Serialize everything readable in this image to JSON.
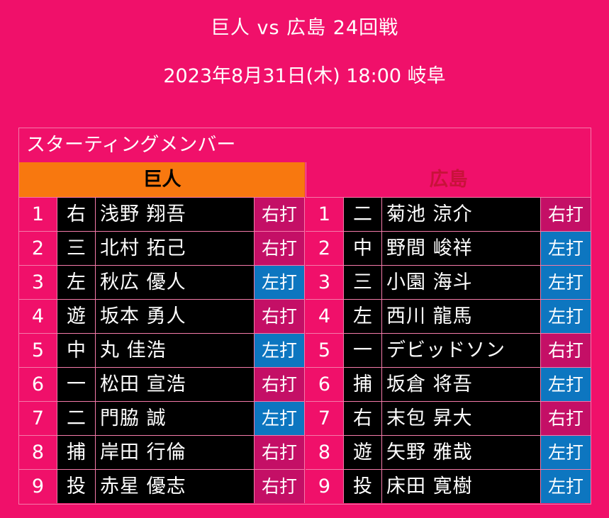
{
  "header": {
    "title": "巨人 vs 広島 24回戦",
    "subtitle": "2023年8月31日(木) 18:00 岐阜"
  },
  "section_title": "スターティングメンバー",
  "teams": [
    {
      "name": "巨人",
      "players": [
        {
          "order": "1",
          "position": "右",
          "name": "浅野 翔吾",
          "bats": "右打"
        },
        {
          "order": "2",
          "position": "三",
          "name": "北村 拓己",
          "bats": "右打"
        },
        {
          "order": "3",
          "position": "左",
          "name": "秋広 優人",
          "bats": "左打"
        },
        {
          "order": "4",
          "position": "遊",
          "name": "坂本 勇人",
          "bats": "右打"
        },
        {
          "order": "5",
          "position": "中",
          "name": "丸 佳浩",
          "bats": "左打"
        },
        {
          "order": "6",
          "position": "一",
          "name": "松田 宣浩",
          "bats": "右打"
        },
        {
          "order": "7",
          "position": "二",
          "name": "門脇 誠",
          "bats": "左打"
        },
        {
          "order": "8",
          "position": "捕",
          "name": "岸田 行倫",
          "bats": "右打"
        },
        {
          "order": "9",
          "position": "投",
          "name": "赤星 優志",
          "bats": "右打"
        }
      ]
    },
    {
      "name": "広島",
      "players": [
        {
          "order": "1",
          "position": "二",
          "name": "菊池 涼介",
          "bats": "右打"
        },
        {
          "order": "2",
          "position": "中",
          "name": "野間 峻祥",
          "bats": "左打"
        },
        {
          "order": "3",
          "position": "三",
          "name": "小園 海斗",
          "bats": "左打"
        },
        {
          "order": "4",
          "position": "左",
          "name": "西川 龍馬",
          "bats": "左打"
        },
        {
          "order": "5",
          "position": "一",
          "name": "デビッドソン",
          "bats": "右打"
        },
        {
          "order": "6",
          "position": "捕",
          "name": "坂倉 将吾",
          "bats": "左打"
        },
        {
          "order": "7",
          "position": "右",
          "name": "末包 昇大",
          "bats": "右打"
        },
        {
          "order": "8",
          "position": "遊",
          "name": "矢野 雅哉",
          "bats": "左打"
        },
        {
          "order": "9",
          "position": "投",
          "name": "床田 寛樹",
          "bats": "左打"
        }
      ]
    }
  ],
  "colors": {
    "background": "#f0106a",
    "home_header": "#f8780f",
    "away_header_text": "#c8123a",
    "bats_right": "#c40f66",
    "bats_left": "#0d76c0"
  }
}
